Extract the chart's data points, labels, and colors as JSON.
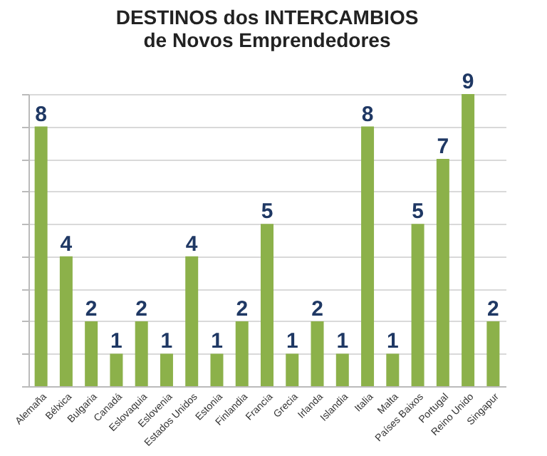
{
  "chart_data": {
    "type": "bar",
    "title": "DESTINOS dos INTERCAMBIOS\nde Novos Emprendedores",
    "categories": [
      "Alemaña",
      "Bélxica",
      "Bulgaria",
      "Canadá",
      "Eslovaquia",
      "Eslovenia",
      "Estados Unidos",
      "Estonia",
      "Finlandia",
      "Francia",
      "Grecia",
      "Irlanda",
      "Islandia",
      "Italia",
      "Malta",
      "Países Baixos",
      "Portugal",
      "Reino Unido",
      "Singapur"
    ],
    "values": [
      8,
      4,
      2,
      1,
      2,
      1,
      4,
      1,
      2,
      5,
      1,
      2,
      1,
      8,
      1,
      5,
      7,
      9,
      2
    ],
    "color": "#8cb14a",
    "ylim": [
      0,
      9
    ],
    "yticks": [
      {
        "value": 0,
        "label": null
      },
      {
        "value": 1,
        "label": null
      },
      {
        "value": 2,
        "label": null
      },
      {
        "value": 3,
        "label": null
      },
      {
        "value": 4,
        "label": null
      },
      {
        "value": 5,
        "label": null
      },
      {
        "value": 6,
        "label": null
      },
      {
        "value": 7,
        "label": null
      },
      {
        "value": 8,
        "label": null
      },
      {
        "value": 9,
        "label": null
      }
    ],
    "grid": "y",
    "data_labels": true,
    "tick_labels": "x"
  }
}
